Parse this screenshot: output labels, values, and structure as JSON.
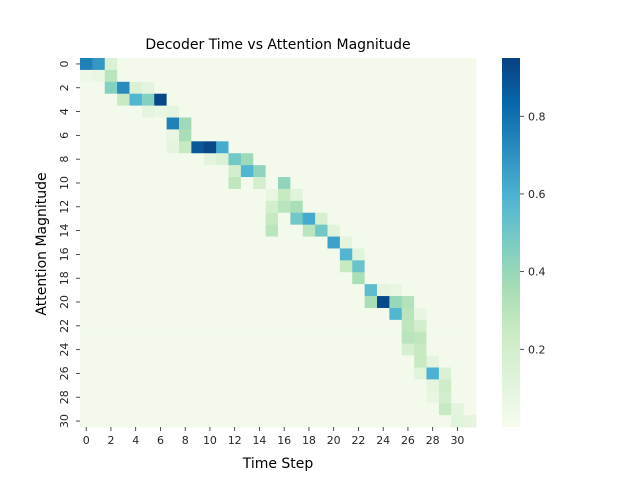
{
  "chart_data": {
    "type": "heatmap",
    "title": "Decoder Time vs Attention Magnitude",
    "xlabel": "Time Step",
    "ylabel": "Attention Magnitude",
    "colormap": "GnBu",
    "grid": false,
    "x_tick_labels": [
      "0",
      "2",
      "4",
      "6",
      "8",
      "10",
      "12",
      "14",
      "16",
      "18",
      "20",
      "22",
      "24",
      "26",
      "28",
      "30"
    ],
    "y_tick_labels": [
      "0",
      "2",
      "4",
      "6",
      "8",
      "10",
      "12",
      "14",
      "16",
      "18",
      "20",
      "22",
      "24",
      "26",
      "28",
      "30"
    ],
    "colorbar": {
      "range": [
        0.0,
        0.95
      ],
      "tick_values": [
        0.2,
        0.4,
        0.6,
        0.8
      ],
      "tick_labels": [
        "0.2",
        "0.4",
        "0.6",
        "0.8"
      ]
    },
    "n_cols": 32,
    "n_rows": 31,
    "background_value": 0.02,
    "cells": [
      [
        0,
        0,
        0.75
      ],
      [
        1,
        0,
        0.68
      ],
      [
        2,
        0,
        0.15
      ],
      [
        0,
        1,
        0.05
      ],
      [
        1,
        1,
        0.08
      ],
      [
        2,
        1,
        0.3
      ],
      [
        2,
        2,
        0.45
      ],
      [
        3,
        2,
        0.72
      ],
      [
        4,
        2,
        0.15
      ],
      [
        5,
        2,
        0.1
      ],
      [
        3,
        3,
        0.25
      ],
      [
        4,
        3,
        0.58
      ],
      [
        5,
        3,
        0.45
      ],
      [
        6,
        3,
        0.93
      ],
      [
        5,
        4,
        0.1
      ],
      [
        6,
        4,
        0.08
      ],
      [
        7,
        4,
        0.1
      ],
      [
        7,
        5,
        0.75
      ],
      [
        8,
        5,
        0.38
      ],
      [
        7,
        6,
        0.08
      ],
      [
        8,
        6,
        0.35
      ],
      [
        7,
        7,
        0.1
      ],
      [
        8,
        7,
        0.25
      ],
      [
        9,
        7,
        0.88
      ],
      [
        10,
        7,
        0.93
      ],
      [
        11,
        7,
        0.62
      ],
      [
        10,
        8,
        0.1
      ],
      [
        11,
        8,
        0.15
      ],
      [
        12,
        8,
        0.5
      ],
      [
        13,
        8,
        0.38
      ],
      [
        12,
        9,
        0.2
      ],
      [
        13,
        9,
        0.58
      ],
      [
        14,
        9,
        0.42
      ],
      [
        12,
        10,
        0.28
      ],
      [
        14,
        10,
        0.2
      ],
      [
        16,
        10,
        0.42
      ],
      [
        15,
        11,
        0.08
      ],
      [
        16,
        11,
        0.25
      ],
      [
        17,
        11,
        0.12
      ],
      [
        15,
        12,
        0.2
      ],
      [
        16,
        12,
        0.3
      ],
      [
        17,
        12,
        0.35
      ],
      [
        15,
        13,
        0.25
      ],
      [
        17,
        13,
        0.5
      ],
      [
        18,
        13,
        0.62
      ],
      [
        19,
        13,
        0.18
      ],
      [
        15,
        14,
        0.3
      ],
      [
        18,
        14,
        0.3
      ],
      [
        19,
        14,
        0.5
      ],
      [
        20,
        14,
        0.12
      ],
      [
        20,
        15,
        0.65
      ],
      [
        21,
        15,
        0.1
      ],
      [
        21,
        16,
        0.58
      ],
      [
        22,
        16,
        0.12
      ],
      [
        21,
        17,
        0.25
      ],
      [
        22,
        17,
        0.52
      ],
      [
        22,
        18,
        0.35
      ],
      [
        23,
        19,
        0.55
      ],
      [
        24,
        19,
        0.1
      ],
      [
        25,
        19,
        0.08
      ],
      [
        23,
        20,
        0.35
      ],
      [
        24,
        20,
        0.93
      ],
      [
        25,
        20,
        0.4
      ],
      [
        26,
        20,
        0.32
      ],
      [
        25,
        21,
        0.58
      ],
      [
        26,
        21,
        0.3
      ],
      [
        27,
        21,
        0.08
      ],
      [
        26,
        22,
        0.28
      ],
      [
        27,
        22,
        0.2
      ],
      [
        26,
        23,
        0.3
      ],
      [
        27,
        23,
        0.28
      ],
      [
        26,
        24,
        0.18
      ],
      [
        27,
        24,
        0.25
      ],
      [
        27,
        25,
        0.25
      ],
      [
        28,
        25,
        0.1
      ],
      [
        27,
        26,
        0.12
      ],
      [
        28,
        26,
        0.6
      ],
      [
        29,
        26,
        0.15
      ],
      [
        28,
        27,
        0.1
      ],
      [
        29,
        27,
        0.22
      ],
      [
        28,
        28,
        0.08
      ],
      [
        29,
        28,
        0.2
      ],
      [
        29,
        29,
        0.25
      ],
      [
        30,
        29,
        0.1
      ],
      [
        30,
        30,
        0.12
      ],
      [
        31,
        30,
        0.1
      ]
    ]
  }
}
